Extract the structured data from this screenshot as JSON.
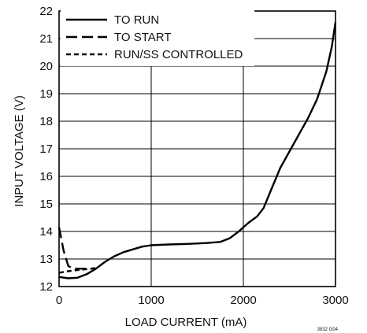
{
  "chart_data": {
    "type": "line",
    "title": "",
    "xlabel": "LOAD CURRENT (mA)",
    "ylabel": "INPUT VOLTAGE (V)",
    "xlim": [
      0,
      3000
    ],
    "ylim": [
      12,
      22
    ],
    "x_ticks": [
      0,
      1000,
      2000,
      3000
    ],
    "y_ticks": [
      12,
      13,
      14,
      15,
      16,
      17,
      18,
      19,
      20,
      21,
      22
    ],
    "grid": true,
    "legend_position": "top-left",
    "footnote": "3832 G04",
    "series": [
      {
        "name": "TO RUN",
        "style": "solid",
        "points": [
          [
            0,
            12.35
          ],
          [
            100,
            12.3
          ],
          [
            200,
            12.32
          ],
          [
            300,
            12.45
          ],
          [
            400,
            12.65
          ],
          [
            500,
            12.9
          ],
          [
            600,
            13.1
          ],
          [
            700,
            13.25
          ],
          [
            800,
            13.35
          ],
          [
            900,
            13.45
          ],
          [
            1000,
            13.5
          ],
          [
            1200,
            13.53
          ],
          [
            1400,
            13.55
          ],
          [
            1600,
            13.58
          ],
          [
            1750,
            13.62
          ],
          [
            1850,
            13.75
          ],
          [
            1950,
            14.0
          ],
          [
            2050,
            14.3
          ],
          [
            2150,
            14.55
          ],
          [
            2220,
            14.85
          ],
          [
            2300,
            15.5
          ],
          [
            2400,
            16.3
          ],
          [
            2550,
            17.2
          ],
          [
            2700,
            18.1
          ],
          [
            2800,
            18.8
          ],
          [
            2900,
            19.8
          ],
          [
            2960,
            20.7
          ],
          [
            3000,
            21.6
          ]
        ]
      },
      {
        "name": "TO START",
        "style": "long-dash",
        "points": [
          [
            0,
            14.15
          ],
          [
            50,
            13.3
          ],
          [
            100,
            12.75
          ],
          [
            150,
            12.65
          ],
          [
            250,
            12.65
          ],
          [
            350,
            12.65
          ]
        ]
      },
      {
        "name": "RUN/SS CONTROLLED",
        "style": "short-dash",
        "points": [
          [
            0,
            12.5
          ],
          [
            80,
            12.55
          ],
          [
            200,
            12.6
          ],
          [
            350,
            12.65
          ],
          [
            420,
            12.7
          ]
        ]
      }
    ]
  },
  "colors": {
    "line": "#000000",
    "grid": "#000000",
    "background": "#ffffff"
  }
}
